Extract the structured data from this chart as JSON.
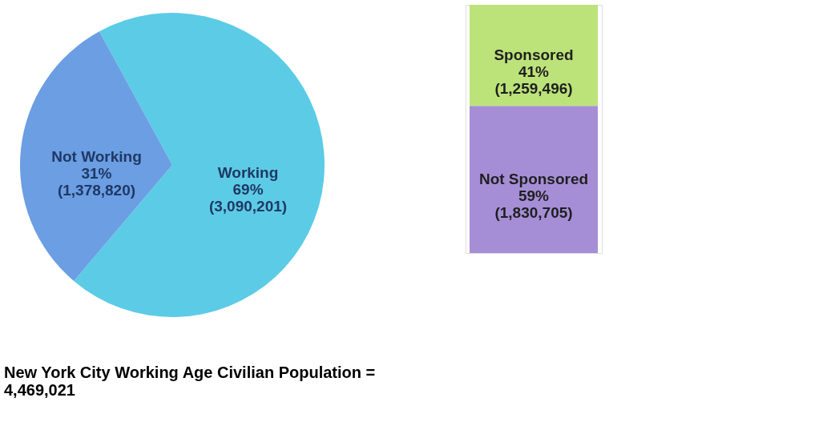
{
  "chart_data": [
    {
      "type": "pie",
      "categories": [
        "Working",
        "Not Working"
      ],
      "values": [
        3090201,
        1378820
      ],
      "colors": [
        "#5ccbe6",
        "#6b9ee2"
      ],
      "value_labels": [
        "69%\n(3,090,201)",
        "31%\n(1,378,820)"
      ],
      "annotations": [
        "New York City Working Age Civilian Population =\n4,469,021"
      ]
    },
    {
      "type": "bar",
      "stacked": true,
      "categories": [
        null
      ],
      "series": [
        {
          "name": "Not Sponsored",
          "color": "#a68ed6",
          "values": [
            1830705
          ],
          "value_labels": [
            "59%\n(1,830,705)"
          ]
        },
        {
          "name": "Sponsored",
          "color": "#bce27a",
          "values": [
            1259496
          ],
          "value_labels": [
            "41%\n(1,259,496)"
          ]
        }
      ]
    }
  ]
}
